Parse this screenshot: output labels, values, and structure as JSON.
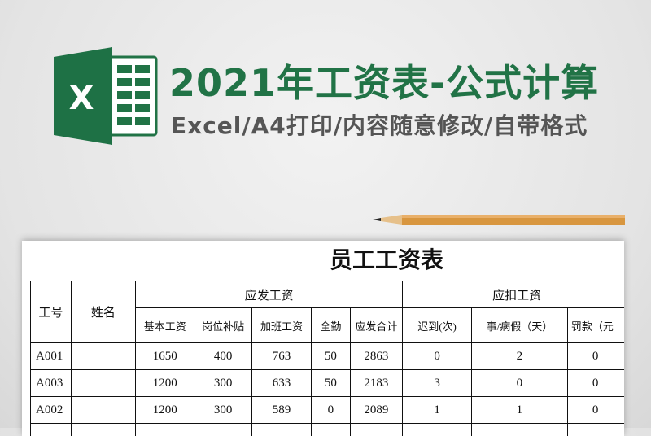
{
  "header": {
    "title": "2021年工资表-公式计算",
    "subtitle": "Excel/A4打印/内容随意修改/自带格式",
    "logo_letter": "X",
    "brand_color": "#217346"
  },
  "sheet": {
    "title": "员工工资表",
    "group_headers": {
      "id": "工号",
      "name": "姓名",
      "payable": "应发工资",
      "deduct": "应扣工资"
    },
    "columns": [
      "基本工资",
      "岗位补贴",
      "加班工资",
      "全勤",
      "应发合计",
      "迟到(次)",
      "事/病假（天）",
      "罚款（元"
    ],
    "rows": [
      {
        "id": "A001",
        "name": "",
        "values": [
          "1650",
          "400",
          "763",
          "50",
          "2863",
          "0",
          "2",
          "0"
        ]
      },
      {
        "id": "A003",
        "name": "",
        "values": [
          "1200",
          "300",
          "633",
          "50",
          "2183",
          "3",
          "0",
          "0"
        ]
      },
      {
        "id": "A002",
        "name": "",
        "values": [
          "1200",
          "300",
          "589",
          "0",
          "2089",
          "1",
          "1",
          "0"
        ]
      }
    ]
  }
}
